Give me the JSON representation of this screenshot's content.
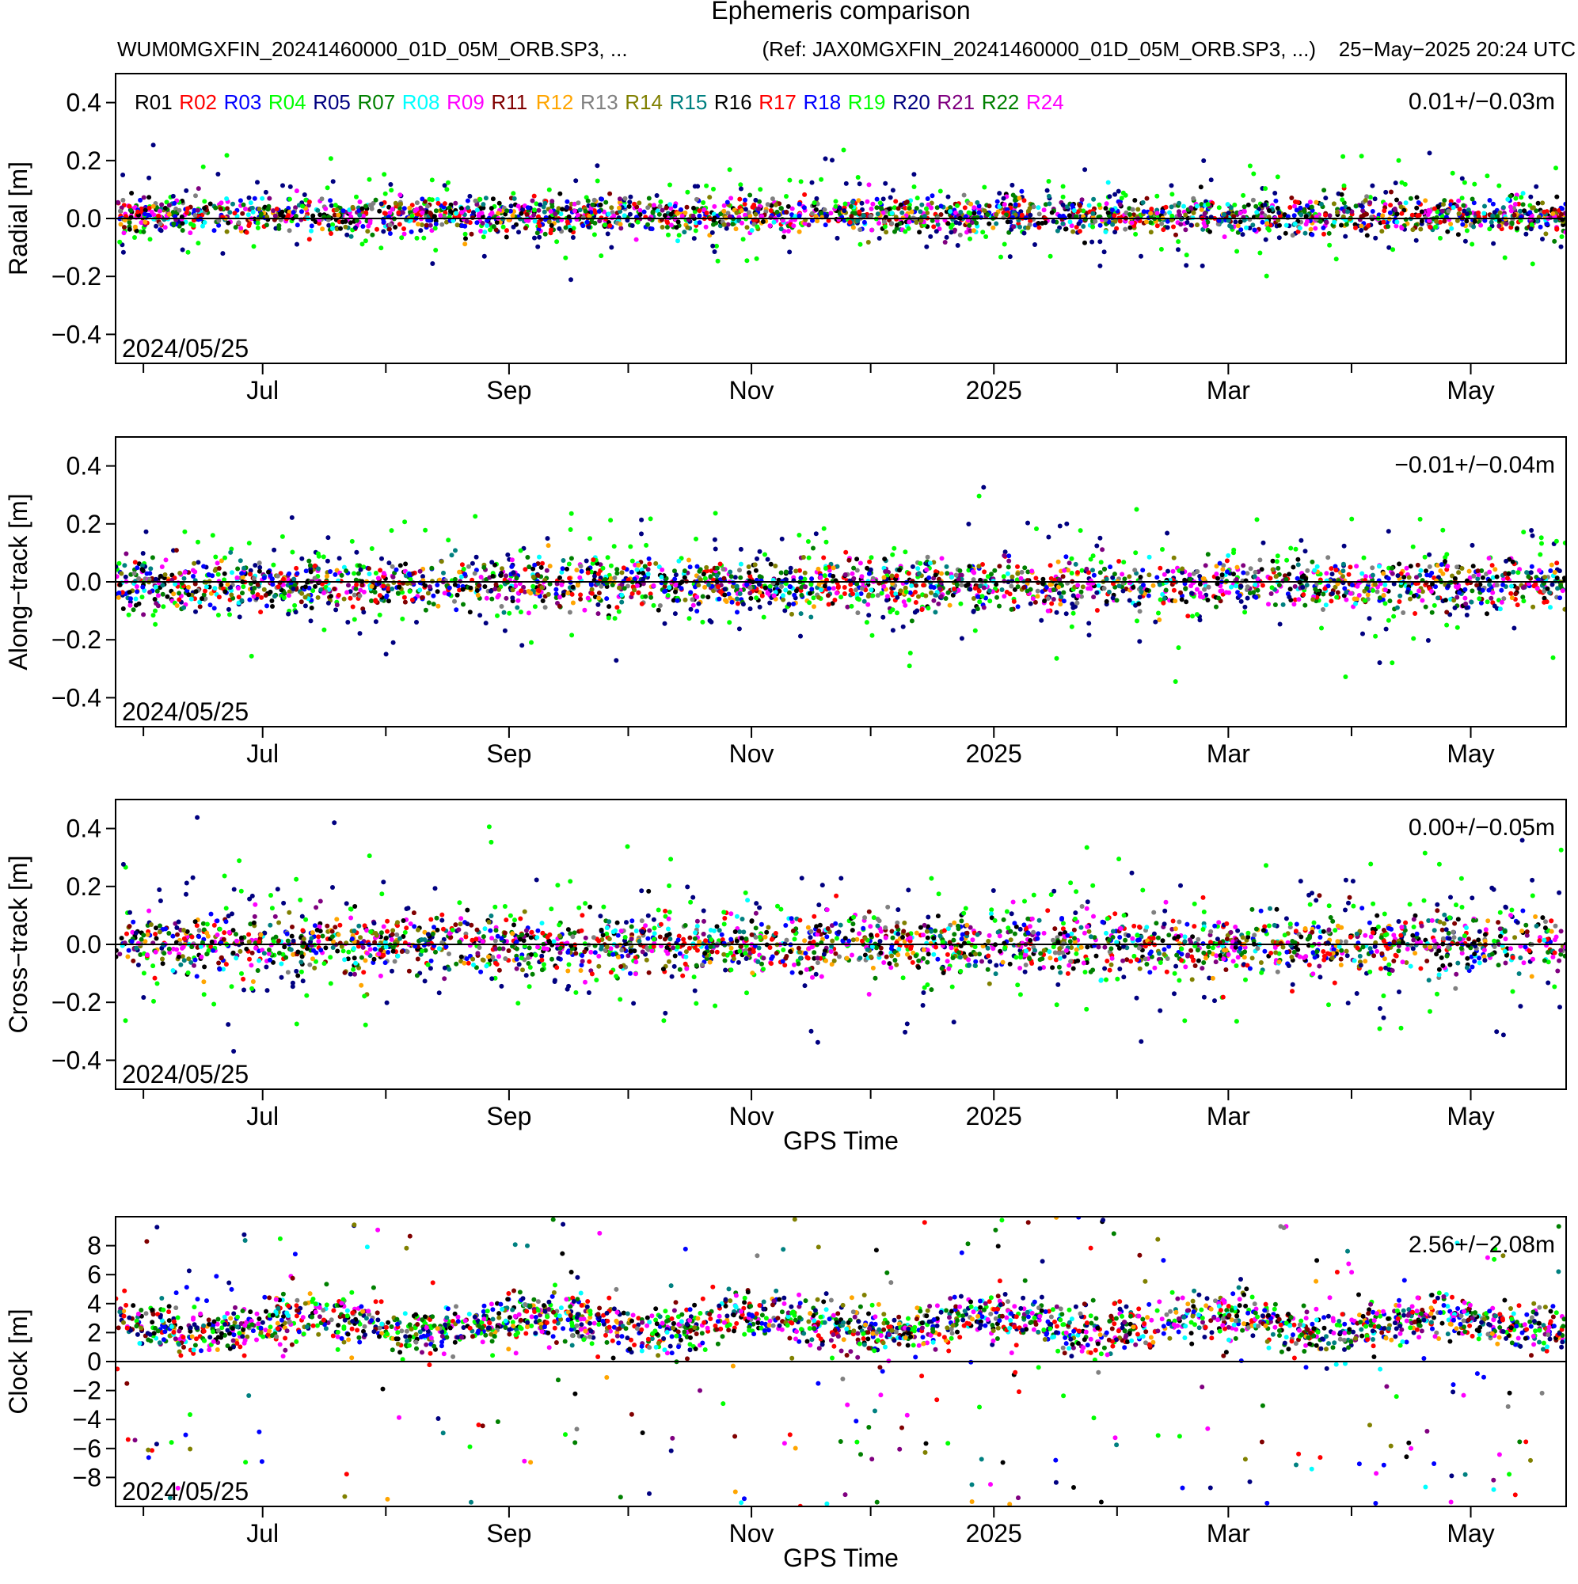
{
  "header": {
    "title": "Ephemeris comparison",
    "file_left": "WUM0MGXFIN_20241460000_01D_05M_ORB.SP3, ...",
    "file_ref": "(Ref: JAX0MGXFIN_20241460000_01D_05M_ORB.SP3, ...)",
    "timestamp": "25−May−2025 20:24 UTC"
  },
  "legend": [
    {
      "name": "R01",
      "color": "#000000"
    },
    {
      "name": "R02",
      "color": "#ff0000"
    },
    {
      "name": "R03",
      "color": "#0000ff"
    },
    {
      "name": "R04",
      "color": "#00ff00"
    },
    {
      "name": "R05",
      "color": "#000080"
    },
    {
      "name": "R07",
      "color": "#008000"
    },
    {
      "name": "R08",
      "color": "#00ffff"
    },
    {
      "name": "R09",
      "color": "#ff00ff"
    },
    {
      "name": "R11",
      "color": "#800000"
    },
    {
      "name": "R12",
      "color": "#ffa500"
    },
    {
      "name": "R13",
      "color": "#808080"
    },
    {
      "name": "R14",
      "color": "#808000"
    },
    {
      "name": "R15",
      "color": "#008080"
    },
    {
      "name": "R16",
      "color": "#000000"
    },
    {
      "name": "R17",
      "color": "#ff0000"
    },
    {
      "name": "R18",
      "color": "#0000ff"
    },
    {
      "name": "R19",
      "color": "#00ff00"
    },
    {
      "name": "R20",
      "color": "#000080"
    },
    {
      "name": "R21",
      "color": "#800080"
    },
    {
      "name": "R22",
      "color": "#008000"
    },
    {
      "name": "R24",
      "color": "#ff00ff"
    }
  ],
  "chart_data": [
    {
      "type": "scatter",
      "panel": "radial",
      "ylabel": "Radial [m]",
      "xlabel": "",
      "ylim": [
        -0.5,
        0.5
      ],
      "yticks": [
        -0.4,
        -0.2,
        0.0,
        0.2,
        0.4
      ],
      "ytick_labels": [
        "−0.4",
        "−0.2",
        "0.0",
        "0.2",
        "0.4"
      ],
      "xlim": [
        "2024-05-25",
        "2025-05-25"
      ],
      "xtick_labels": [
        {
          "date": "2024-07-01",
          "label": "Jul"
        },
        {
          "date": "2024-09-01",
          "label": "Sep"
        },
        {
          "date": "2024-11-01",
          "label": "Nov"
        },
        {
          "date": "2025-01-01",
          "label": "2025"
        },
        {
          "date": "2025-03-01",
          "label": "Mar"
        },
        {
          "date": "2025-05-01",
          "label": "May"
        }
      ],
      "minor_ticks": [
        "2024-06-01",
        "2024-08-01",
        "2024-10-01",
        "2024-12-01",
        "2025-02-01",
        "2025-04-01"
      ],
      "stat": "0.01+/−0.03m",
      "date_stamp": "2024/05/25",
      "zero_line": true,
      "mean": 0.01,
      "std": 0.03
    },
    {
      "type": "scatter",
      "panel": "along-track",
      "ylabel": "Along−track [m]",
      "xlabel": "",
      "ylim": [
        -0.5,
        0.5
      ],
      "yticks": [
        -0.4,
        -0.2,
        0.0,
        0.2,
        0.4
      ],
      "ytick_labels": [
        "−0.4",
        "−0.2",
        "0.0",
        "0.2",
        "0.4"
      ],
      "xlim": [
        "2024-05-25",
        "2025-05-25"
      ],
      "xtick_labels": [
        {
          "date": "2024-07-01",
          "label": "Jul"
        },
        {
          "date": "2024-09-01",
          "label": "Sep"
        },
        {
          "date": "2024-11-01",
          "label": "Nov"
        },
        {
          "date": "2025-01-01",
          "label": "2025"
        },
        {
          "date": "2025-03-01",
          "label": "Mar"
        },
        {
          "date": "2025-05-01",
          "label": "May"
        }
      ],
      "minor_ticks": [
        "2024-06-01",
        "2024-08-01",
        "2024-10-01",
        "2024-12-01",
        "2025-02-01",
        "2025-04-01"
      ],
      "stat": "−0.01+/−0.04m",
      "date_stamp": "2024/05/25",
      "zero_line": true,
      "mean": -0.01,
      "std": 0.04
    },
    {
      "type": "scatter",
      "panel": "cross-track",
      "ylabel": "Cross−track [m]",
      "xlabel": "GPS Time",
      "ylim": [
        -0.5,
        0.5
      ],
      "yticks": [
        -0.4,
        -0.2,
        0.0,
        0.2,
        0.4
      ],
      "ytick_labels": [
        "−0.4",
        "−0.2",
        "0.0",
        "0.2",
        "0.4"
      ],
      "xlim": [
        "2024-05-25",
        "2025-05-25"
      ],
      "xtick_labels": [
        {
          "date": "2024-07-01",
          "label": "Jul"
        },
        {
          "date": "2024-09-01",
          "label": "Sep"
        },
        {
          "date": "2024-11-01",
          "label": "Nov"
        },
        {
          "date": "2025-01-01",
          "label": "2025"
        },
        {
          "date": "2025-03-01",
          "label": "Mar"
        },
        {
          "date": "2025-05-01",
          "label": "May"
        }
      ],
      "minor_ticks": [
        "2024-06-01",
        "2024-08-01",
        "2024-10-01",
        "2024-12-01",
        "2025-02-01",
        "2025-04-01"
      ],
      "stat": "0.00+/−0.05m",
      "date_stamp": "2024/05/25",
      "zero_line": true,
      "mean": 0.0,
      "std": 0.05
    },
    {
      "type": "scatter",
      "panel": "clock",
      "ylabel": "Clock [m]",
      "xlabel": "GPS Time",
      "ylim": [
        -10,
        10
      ],
      "yticks": [
        -8,
        -6,
        -4,
        -2,
        0,
        2,
        4,
        6,
        8
      ],
      "ytick_labels": [
        "−8",
        "−6",
        "−4",
        "−2",
        "0",
        "2",
        "4",
        "6",
        "8"
      ],
      "xlim": [
        "2024-05-25",
        "2025-05-25"
      ],
      "xtick_labels": [
        {
          "date": "2024-07-01",
          "label": "Jul"
        },
        {
          "date": "2024-09-01",
          "label": "Sep"
        },
        {
          "date": "2024-11-01",
          "label": "Nov"
        },
        {
          "date": "2025-01-01",
          "label": "2025"
        },
        {
          "date": "2025-03-01",
          "label": "Mar"
        },
        {
          "date": "2025-05-01",
          "label": "May"
        }
      ],
      "minor_ticks": [
        "2024-06-01",
        "2024-08-01",
        "2024-10-01",
        "2024-12-01",
        "2025-02-01",
        "2025-04-01"
      ],
      "stat": "2.56+/−2.08m",
      "date_stamp": "2024/05/25",
      "zero_line": true,
      "mean": 2.56,
      "std": 2.08
    }
  ]
}
